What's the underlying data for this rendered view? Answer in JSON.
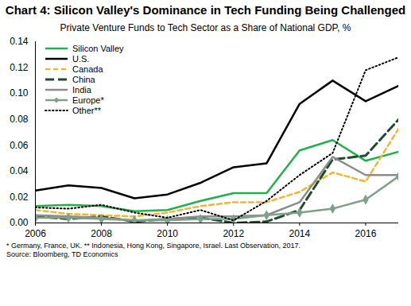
{
  "chart_data": {
    "type": "line",
    "title": "Chart 4: Silicon Valley's Dominance in Tech Funding Being Challenged",
    "subtitle": "Private Venture Funds to Tech Sector as a Share of National GDP, %",
    "footnotes": [
      "* Germany, France, UK. ** Indonesia, Hong Kong, Singapore, Israel. Last Observation, 2017.",
      "Source: Bloomberg, TD Economics"
    ],
    "x": [
      2006,
      2007,
      2008,
      2009,
      2010,
      2011,
      2012,
      2013,
      2014,
      2015,
      2016,
      2017
    ],
    "xlim": [
      2006,
      2017
    ],
    "xticks": [
      2006,
      2008,
      2010,
      2012,
      2014,
      2016
    ],
    "ylim": [
      0,
      0.14
    ],
    "yticks": [
      {
        "value": 0,
        "label": "0.00"
      },
      {
        "value": 0.02,
        "label": "0.02"
      },
      {
        "value": 0.04,
        "label": "0.04"
      },
      {
        "value": 0.06,
        "label": "0.06"
      },
      {
        "value": 0.08,
        "label": "0.08"
      },
      {
        "value": 0.1,
        "label": "0.10"
      },
      {
        "value": 0.12,
        "label": "0.12"
      },
      {
        "value": 0.14,
        "label": "0.14"
      }
    ],
    "grid": false,
    "legend": "top-left",
    "series": [
      {
        "name": "Silicon Valley",
        "color": "#1fb24a",
        "line_style": "solid",
        "values": [
          0.013,
          0.014,
          0.013,
          0.009,
          0.01,
          0.017,
          0.023,
          0.023,
          0.056,
          0.064,
          0.048,
          0.055
        ]
      },
      {
        "name": "U.S.",
        "color": "#000000",
        "line_style": "solid",
        "values": [
          0.025,
          0.029,
          0.027,
          0.019,
          0.022,
          0.031,
          0.043,
          0.046,
          0.092,
          0.11,
          0.094,
          0.106
        ]
      },
      {
        "name": "Canada",
        "color": "#f2b631",
        "line_style": "dashed",
        "values": [
          0.01,
          0.007,
          0.006,
          0.005,
          0.008,
          0.013,
          0.016,
          0.016,
          0.024,
          0.039,
          0.032,
          0.073
        ]
      },
      {
        "name": "China",
        "color": "#1e4d2b",
        "line_style": "longdash",
        "values": [
          0.005,
          0.003,
          0.005,
          0.001,
          0.003,
          0.004,
          0.0,
          0.001,
          0.01,
          0.049,
          0.052,
          0.08
        ]
      },
      {
        "name": "India",
        "color": "#8c8c8c",
        "line_style": "solid",
        "values": [
          0.006,
          0.005,
          0.004,
          0.002,
          0.003,
          0.005,
          0.005,
          0.006,
          0.016,
          0.051,
          0.037,
          0.037
        ]
      },
      {
        "name": "Europe*",
        "color": "#7fa08a",
        "line_style": "solid",
        "marker": "diamond",
        "values": [
          0.004,
          0.004,
          0.003,
          0.002,
          0.002,
          0.003,
          0.003,
          0.006,
          0.008,
          0.011,
          0.018,
          0.036
        ]
      },
      {
        "name": "Other**",
        "color": "#000000",
        "line_style": "dotted",
        "values": [
          0.012,
          0.011,
          0.014,
          0.008,
          0.004,
          0.01,
          0.002,
          0.017,
          0.037,
          0.054,
          0.118,
          0.128
        ]
      }
    ]
  }
}
